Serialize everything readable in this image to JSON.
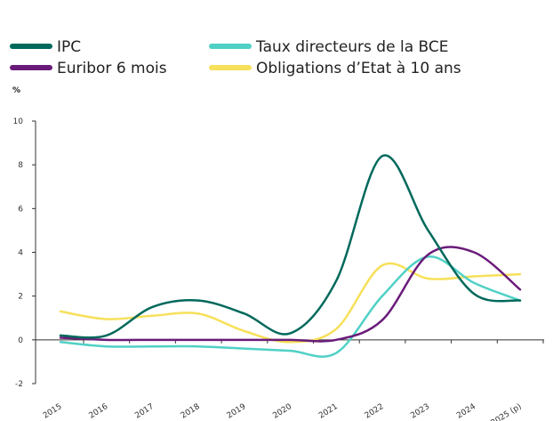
{
  "chart_data": {
    "type": "line",
    "y_label": "%",
    "categories": [
      "2015",
      "2016",
      "2017",
      "2018",
      "2019",
      "2020",
      "2021",
      "2022",
      "2023",
      "2024",
      "2025 (p)"
    ],
    "series": [
      {
        "name": "IPC",
        "color": "#00695c",
        "values": [
          0.2,
          0.2,
          1.5,
          1.8,
          1.2,
          0.3,
          2.7,
          8.4,
          5.0,
          2.1,
          1.8
        ]
      },
      {
        "name": "Euribor 6 mois",
        "color": "#6a1b7a",
        "values": [
          0.1,
          0.0,
          0.0,
          0.0,
          0.0,
          0.0,
          0.0,
          0.9,
          3.9,
          4.0,
          2.3
        ]
      },
      {
        "name": "Taux directeurs de la BCE",
        "color": "#4fd1c5",
        "values": [
          -0.1,
          -0.3,
          -0.3,
          -0.3,
          -0.4,
          -0.5,
          -0.6,
          2.0,
          3.8,
          2.6,
          1.8
        ]
      },
      {
        "name": "Obligations d’Etat à 10 ans",
        "color": "#f7e05a",
        "values": [
          1.3,
          0.95,
          1.1,
          1.2,
          0.4,
          -0.1,
          0.5,
          3.4,
          2.8,
          2.9,
          3.0
        ]
      }
    ],
    "ylim": [
      -2,
      10
    ],
    "yticks": [
      -2,
      0,
      2,
      4,
      6,
      8,
      10
    ]
  }
}
